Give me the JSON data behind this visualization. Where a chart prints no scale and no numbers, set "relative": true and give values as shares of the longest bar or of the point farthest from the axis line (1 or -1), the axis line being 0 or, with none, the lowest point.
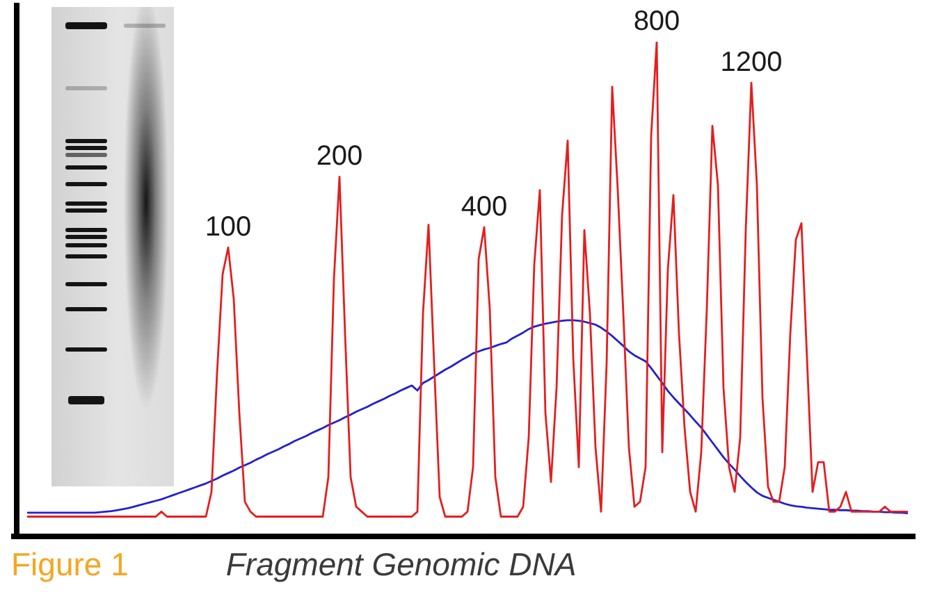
{
  "chart_data": {
    "type": "line",
    "relative": true,
    "marker": "none",
    "categories": [
      null,
      null,
      null,
      null,
      null,
      null,
      null,
      null,
      null,
      null,
      null,
      null,
      null,
      null,
      null,
      null,
      null,
      null,
      null,
      null,
      null,
      null,
      null,
      null,
      null,
      null,
      null,
      null,
      null,
      null,
      null,
      null,
      null,
      null,
      null,
      null,
      null,
      null,
      null,
      null,
      null,
      null,
      null,
      null,
      null,
      null,
      null,
      null,
      null,
      null,
      null,
      null,
      null,
      null,
      null,
      null,
      null,
      null,
      null,
      null,
      null,
      null,
      null,
      null,
      null,
      null,
      null,
      null,
      null,
      null,
      null,
      null,
      null,
      null,
      null,
      null,
      null,
      null,
      null,
      null,
      null,
      null,
      null,
      null,
      null,
      null,
      null,
      null,
      null,
      null,
      null,
      null,
      null,
      null,
      null,
      null,
      null,
      null,
      null,
      null,
      null,
      null,
      null,
      null,
      null,
      null,
      null,
      null,
      null,
      null,
      null,
      null,
      null,
      null,
      null,
      null,
      null,
      null,
      null,
      null,
      null,
      null,
      null,
      null,
      null,
      null,
      null,
      null,
      null,
      null,
      null,
      null,
      null,
      null,
      null,
      null,
      null,
      null,
      null,
      null,
      null,
      null,
      null,
      null,
      null,
      null,
      null,
      null,
      null,
      null,
      null,
      null,
      null,
      null,
      null,
      null,
      null,
      null,
      null
    ],
    "series": [
      {
        "color": "#e41e1e",
        "values": [
          0.04,
          0.04,
          0.04,
          0.04,
          0.04,
          0.04,
          0.04,
          0.04,
          0.04,
          0.04,
          0.04,
          0.04,
          0.04,
          0.04,
          0.04,
          0.04,
          0.04,
          0.04,
          0.04,
          0.04,
          0.04,
          0.04,
          0.04,
          0.04,
          0.05,
          0.04,
          0.04,
          0.04,
          0.04,
          0.04,
          0.04,
          0.04,
          0.04,
          0.09,
          0.33,
          0.53,
          0.584,
          0.48,
          0.25,
          0.07,
          0.05,
          0.04,
          0.04,
          0.04,
          0.04,
          0.04,
          0.04,
          0.04,
          0.04,
          0.04,
          0.04,
          0.04,
          0.04,
          0.04,
          0.12,
          0.52,
          0.727,
          0.41,
          0.12,
          0.06,
          0.05,
          0.04,
          0.04,
          0.04,
          0.04,
          0.04,
          0.04,
          0.04,
          0.04,
          0.04,
          0.05,
          0.45,
          0.63,
          0.35,
          0.08,
          0.04,
          0.04,
          0.04,
          0.04,
          0.05,
          0.14,
          0.56,
          0.625,
          0.46,
          0.12,
          0.04,
          0.04,
          0.04,
          0.04,
          0.06,
          0.2,
          0.55,
          0.7,
          0.25,
          0.11,
          0.3,
          0.65,
          0.8,
          0.36,
          0.14,
          0.619,
          0.45,
          0.18,
          0.05,
          0.35,
          0.909,
          0.7,
          0.45,
          0.18,
          0.06,
          0.07,
          0.14,
          0.81,
          1,
          0.17,
          0.54,
          0.69,
          0.41,
          0.22,
          0.09,
          0.05,
          0.17,
          0.46,
          0.83,
          0.71,
          0.3,
          0.14,
          0.09,
          0.2,
          0.62,
          0.917,
          0.71,
          0.28,
          0.1,
          0.07,
          0.07,
          0.14,
          0.41,
          0.6,
          0.633,
          0.36,
          0.09,
          0.15,
          0.15,
          0.05,
          0.05,
          0.06,
          0.09,
          0.05,
          0.05,
          0.05,
          0.05,
          0.05,
          0.05,
          0.06,
          0.05,
          0.05,
          0.05,
          0.05
        ]
      },
      {
        "color": "#2020d0",
        "values": [
          0.048,
          0.048,
          0.048,
          0.048,
          0.048,
          0.048,
          0.048,
          0.048,
          0.048,
          0.048,
          0.048,
          0.048,
          0.048,
          0.049,
          0.05,
          0.051,
          0.053,
          0.055,
          0.057,
          0.06,
          0.063,
          0.066,
          0.069,
          0.072,
          0.075,
          0.079,
          0.083,
          0.087,
          0.091,
          0.095,
          0.099,
          0.103,
          0.107,
          0.112,
          0.117,
          0.123,
          0.128,
          0.133,
          0.139,
          0.144,
          0.149,
          0.155,
          0.16,
          0.166,
          0.171,
          0.176,
          0.182,
          0.187,
          0.193,
          0.198,
          0.203,
          0.209,
          0.214,
          0.219,
          0.225,
          0.23,
          0.235,
          0.241,
          0.246,
          0.252,
          0.257,
          0.262,
          0.268,
          0.273,
          0.278,
          0.284,
          0.289,
          0.295,
          0.3,
          0.305,
          0.295,
          0.31,
          0.316,
          0.323,
          0.33,
          0.337,
          0.343,
          0.35,
          0.357,
          0.363,
          0.37,
          0.374,
          0.378,
          0.381,
          0.385,
          0.389,
          0.392,
          0.4,
          0.406,
          0.412,
          0.419,
          0.424,
          0.427,
          0.43,
          0.432,
          0.434,
          0.436,
          0.437,
          0.437,
          0.436,
          0.434,
          0.431,
          0.428,
          0.422,
          0.414,
          0.405,
          0.395,
          0.385,
          0.374,
          0.366,
          0.36,
          0.354,
          0.34,
          0.325,
          0.31,
          0.294,
          0.281,
          0.269,
          0.257,
          0.245,
          0.232,
          0.22,
          0.205,
          0.19,
          0.175,
          0.16,
          0.147,
          0.135,
          0.122,
          0.11,
          0.099,
          0.089,
          0.082,
          0.078,
          0.074,
          0.07,
          0.066,
          0.063,
          0.061,
          0.06,
          0.058,
          0.057,
          0.056,
          0.055,
          0.054,
          0.054,
          0.053,
          0.053,
          0.052,
          0.052,
          0.051,
          0.051,
          0.05,
          0.05,
          0.049,
          0.049,
          0.048,
          0.048,
          0.047
        ]
      }
    ],
    "annotations": [
      {
        "text": "100",
        "y": 0.584
      },
      {
        "text": "200",
        "y": 0.727
      },
      {
        "text": "400",
        "y": 0.625
      },
      {
        "text": "800",
        "y": 1
      },
      {
        "text": "1200",
        "y": 0.917
      },
      "Figure 1",
      "Fragment Genomic DNA"
    ]
  }
}
